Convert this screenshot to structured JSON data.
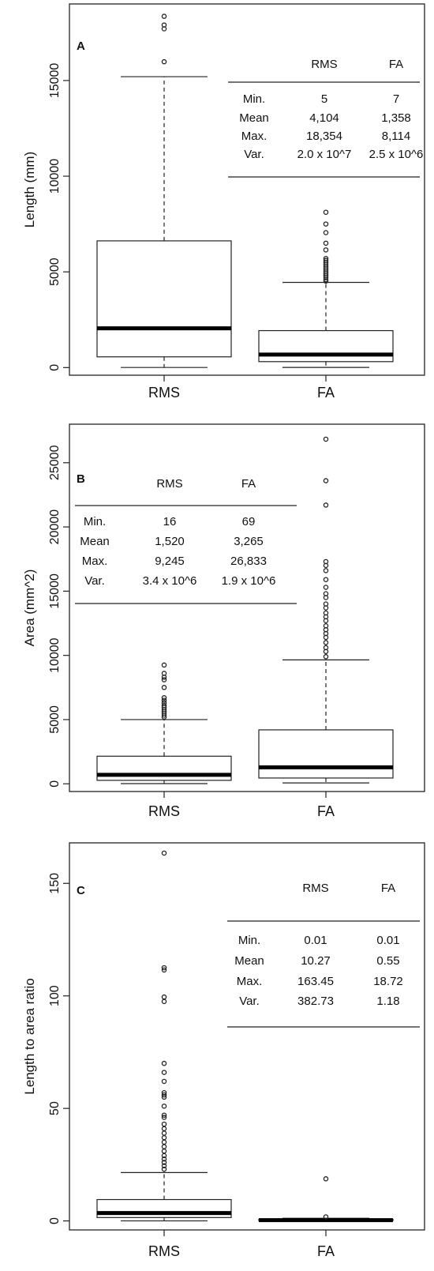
{
  "chart_data": [
    {
      "type": "box",
      "panel_letter": "A",
      "ylabel": "Length (mm)",
      "categories": [
        "RMS",
        "FA"
      ],
      "y_ticks": [
        0,
        5000,
        10000,
        15000
      ],
      "ylim": [
        -400,
        19000
      ],
      "boxes": [
        {
          "name": "RMS",
          "whisker_low": 5,
          "q1": 560,
          "median": 2050,
          "q3": 6620,
          "whisker_high": 15200,
          "outliers": [
            15980,
            17700,
            17900,
            18354
          ]
        },
        {
          "name": "FA",
          "whisker_low": 7,
          "q1": 310,
          "median": 680,
          "q3": 1930,
          "whisker_high": 4450,
          "outliers": [
            4520,
            4600,
            4700,
            4800,
            4900,
            5000,
            5100,
            5200,
            5300,
            5400,
            5500,
            5600,
            5700,
            6150,
            6500,
            7050,
            7500,
            8114
          ]
        }
      ],
      "stats_table": {
        "headers": [
          "",
          "RMS",
          "FA"
        ],
        "rows": [
          [
            "Min.",
            "5",
            "7"
          ],
          [
            "Mean",
            "4,104",
            "1,358"
          ],
          [
            "Max.",
            "18,354",
            "8,114"
          ],
          [
            "Var.",
            "2.0 x 10^7",
            "2.5 x 10^6"
          ]
        ]
      }
    },
    {
      "type": "box",
      "panel_letter": "B",
      "ylabel": "Area (mm^2)",
      "categories": [
        "RMS",
        "FA"
      ],
      "y_ticks": [
        0,
        5000,
        10000,
        15000,
        20000,
        25000
      ],
      "ylim": [
        -600,
        28000
      ],
      "boxes": [
        {
          "name": "RMS",
          "whisker_low": 16,
          "q1": 270,
          "median": 700,
          "q3": 2150,
          "whisker_high": 5000,
          "outliers": [
            5200,
            5350,
            5500,
            5650,
            5800,
            5950,
            6100,
            6300,
            6500,
            6700,
            7500,
            8100,
            8300,
            8600,
            9245
          ]
        },
        {
          "name": "FA",
          "whisker_low": 69,
          "q1": 450,
          "median": 1280,
          "q3": 4200,
          "whisker_high": 9650,
          "outliers": [
            9900,
            10300,
            10600,
            11000,
            11400,
            11700,
            12000,
            12300,
            12700,
            13000,
            13300,
            13700,
            14000,
            14500,
            14800,
            15300,
            15900,
            16600,
            17000,
            17300,
            21700,
            23600,
            26833
          ]
        }
      ],
      "stats_table": {
        "headers": [
          "",
          "RMS",
          "FA"
        ],
        "rows": [
          [
            "Min.",
            "16",
            "69"
          ],
          [
            "Mean",
            "1,520",
            "3,265"
          ],
          [
            "Max.",
            "9,245",
            "26,833"
          ],
          [
            "Var.",
            "3.4 x 10^6",
            "1.9 x 10^6"
          ]
        ]
      }
    },
    {
      "type": "box",
      "panel_letter": "C",
      "ylabel": "Length to area ratio",
      "categories": [
        "RMS",
        "FA"
      ],
      "y_ticks": [
        0,
        50,
        100,
        150
      ],
      "ylim": [
        -4,
        168
      ],
      "boxes": [
        {
          "name": "RMS",
          "whisker_low": 0.01,
          "q1": 1.5,
          "median": 3.5,
          "q3": 9.5,
          "whisker_high": 21.5,
          "outliers": [
            23,
            24.5,
            26,
            27.5,
            29,
            31,
            33,
            35,
            37,
            39,
            41,
            43,
            46,
            47,
            51,
            55,
            56,
            57,
            62,
            66,
            70,
            97.5,
            99.5,
            111.5,
            112.5,
            163.45
          ]
        },
        {
          "name": "FA",
          "whisker_low": 0.01,
          "q1": 0.15,
          "median": 0.35,
          "q3": 0.7,
          "whisker_high": 1.2,
          "outliers": [
            1.8,
            18.72
          ]
        }
      ],
      "stats_table": {
        "headers": [
          "",
          "RMS",
          "FA"
        ],
        "rows": [
          [
            "Min.",
            "0.01",
            "0.01"
          ],
          [
            "Mean",
            "10.27",
            "0.55"
          ],
          [
            "Max.",
            "163.45",
            "18.72"
          ],
          [
            "Var.",
            "382.73",
            "1.18"
          ]
        ]
      }
    }
  ]
}
